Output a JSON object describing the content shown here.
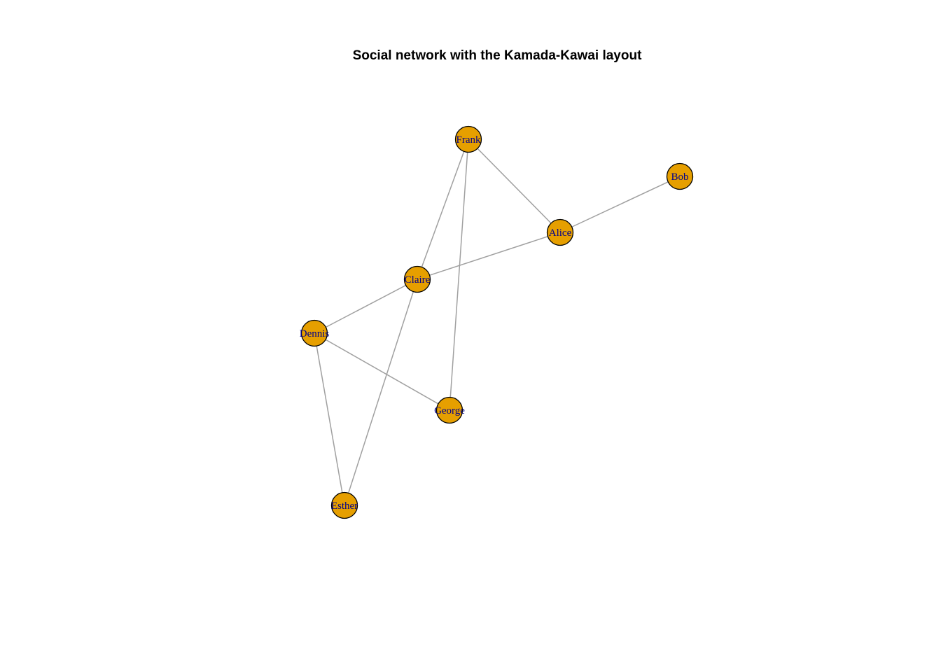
{
  "title": "Social network with the Kamada-Kawai layout",
  "colors": {
    "node_fill": "#E69F00",
    "node_stroke": "#000000",
    "edge": "#A0A0A0",
    "label": "#00008B",
    "title": "#000000"
  },
  "nodes": [
    {
      "id": "Frank",
      "label": "Frank"
    },
    {
      "id": "Bob",
      "label": "Bob"
    },
    {
      "id": "Alice",
      "label": "Alice"
    },
    {
      "id": "Claire",
      "label": "Claire"
    },
    {
      "id": "Dennis",
      "label": "Dennis"
    },
    {
      "id": "George",
      "label": "George"
    },
    {
      "id": "Esther",
      "label": "Esther"
    }
  ],
  "edges": [
    {
      "source": "Frank",
      "target": "Alice"
    },
    {
      "source": "Frank",
      "target": "Claire"
    },
    {
      "source": "Frank",
      "target": "George"
    },
    {
      "source": "Bob",
      "target": "Alice"
    },
    {
      "source": "Alice",
      "target": "Claire"
    },
    {
      "source": "Claire",
      "target": "Dennis"
    },
    {
      "source": "Claire",
      "target": "Esther"
    },
    {
      "source": "Dennis",
      "target": "George"
    },
    {
      "source": "Dennis",
      "target": "Esther"
    }
  ]
}
